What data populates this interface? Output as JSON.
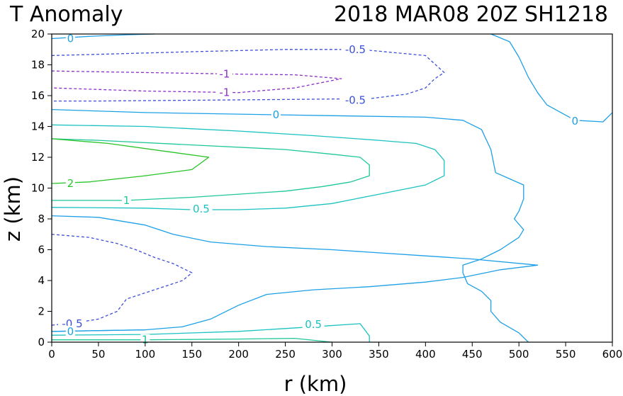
{
  "title": {
    "left": "T Anomaly",
    "right": "2018 MAR08 20Z   SH1218"
  },
  "chart_data": {
    "type": "contour",
    "xlabel": "r (km)",
    "ylabel": "z (km)",
    "xlim": [
      0,
      600
    ],
    "ylim": [
      0,
      20
    ],
    "xticks": [
      0,
      50,
      100,
      150,
      200,
      250,
      300,
      350,
      400,
      450,
      500,
      550,
      600
    ],
    "yticks": [
      0,
      2,
      4,
      6,
      8,
      10,
      12,
      14,
      16,
      18,
      20
    ],
    "grid": false,
    "levels": [
      {
        "level": -1,
        "label": "-1",
        "color": "#8b2fc9",
        "dashed": true
      },
      {
        "level": -0.5,
        "label": "-0.5",
        "color": "#3b4fd8",
        "dashed": true
      },
      {
        "level": 0,
        "label": "0",
        "color": "#1ea0e6",
        "dashed": false
      },
      {
        "level": 0.5,
        "label": "0.5",
        "color": "#1cc2c2",
        "dashed": false
      },
      {
        "level": 1,
        "label": "1",
        "color": "#1fc79a",
        "dashed": false
      },
      {
        "level": 2,
        "label": "2",
        "color": "#27c427",
        "dashed": false
      }
    ],
    "contours": [
      {
        "level": 0,
        "points": [
          [
            0,
            19.7
          ],
          [
            40,
            19.85
          ],
          [
            80,
            19.95
          ],
          [
            110,
            20
          ]
        ],
        "labels": [
          {
            "text": "0",
            "at": [
              20,
              19.7
            ]
          }
        ]
      },
      {
        "level": -0.5,
        "points": [
          [
            0,
            18.6
          ],
          [
            60,
            18.7
          ],
          [
            150,
            18.85
          ],
          [
            250,
            19.0
          ],
          [
            330,
            19.0
          ],
          [
            400,
            18.6
          ],
          [
            420,
            17.5
          ],
          [
            410,
            17.1
          ],
          [
            400,
            16.5
          ],
          [
            380,
            16.1
          ],
          [
            340,
            15.8
          ],
          [
            250,
            15.75
          ],
          [
            150,
            15.7
          ],
          [
            50,
            15.65
          ],
          [
            0,
            15.65
          ]
        ],
        "labels": [
          {
            "text": "-0.5",
            "at": [
              325,
              19.0
            ]
          },
          {
            "text": "-0.5",
            "at": [
              325,
              15.7
            ]
          }
        ]
      },
      {
        "level": -1,
        "points": [
          [
            0,
            17.6
          ],
          [
            100,
            17.5
          ],
          [
            200,
            17.4
          ],
          [
            260,
            17.35
          ],
          [
            310,
            17.1
          ],
          [
            260,
            16.5
          ],
          [
            200,
            16.2
          ],
          [
            100,
            16.3
          ],
          [
            0,
            16.5
          ]
        ],
        "labels": [
          {
            "text": "-1",
            "at": [
              185,
              17.4
            ]
          },
          {
            "text": "-1",
            "at": [
              185,
              16.2
            ]
          }
        ]
      },
      {
        "level": 0,
        "points": [
          [
            0,
            15.1
          ],
          [
            100,
            14.9
          ],
          [
            200,
            14.8
          ],
          [
            300,
            14.7
          ],
          [
            400,
            14.6
          ],
          [
            440,
            14.4
          ],
          [
            460,
            13.8
          ],
          [
            470,
            12.5
          ],
          [
            475,
            11.0
          ],
          [
            490,
            10.6
          ],
          [
            505,
            10.2
          ],
          [
            505,
            9.3
          ],
          [
            500,
            8.5
          ],
          [
            495,
            8.0
          ],
          [
            505,
            7.3
          ],
          [
            500,
            6.8
          ],
          [
            480,
            6.0
          ],
          [
            460,
            5.4
          ],
          [
            440,
            5.0
          ],
          [
            440,
            4.5
          ],
          [
            445,
            3.8
          ],
          [
            460,
            3.3
          ],
          [
            470,
            2.7
          ],
          [
            470,
            2.0
          ],
          [
            480,
            1.3
          ],
          [
            500,
            0.6
          ],
          [
            510,
            0
          ]
        ],
        "labels": [
          {
            "text": "0",
            "at": [
              240,
              14.75
            ]
          }
        ]
      },
      {
        "level": 0,
        "points": [
          [
            470,
            20
          ],
          [
            490,
            19.5
          ],
          [
            500,
            18.5
          ],
          [
            510,
            17.2
          ],
          [
            520,
            16.2
          ],
          [
            530,
            15.4
          ],
          [
            560,
            14.4
          ],
          [
            590,
            14.3
          ],
          [
            600,
            14.9
          ]
        ],
        "labels": [
          {
            "text": "0",
            "at": [
              560,
              14.35
            ]
          }
        ]
      },
      {
        "level": 0.5,
        "points": [
          [
            0,
            14.1
          ],
          [
            100,
            14.0
          ],
          [
            200,
            13.7
          ],
          [
            280,
            13.4
          ],
          [
            350,
            13.1
          ],
          [
            390,
            12.9
          ],
          [
            410,
            12.5
          ],
          [
            420,
            11.8
          ],
          [
            420,
            10.8
          ],
          [
            400,
            10.2
          ],
          [
            350,
            9.6
          ],
          [
            300,
            9.0
          ],
          [
            250,
            8.7
          ],
          [
            200,
            8.6
          ],
          [
            150,
            8.6
          ],
          [
            100,
            8.7
          ],
          [
            0,
            8.75
          ]
        ],
        "labels": [
          {
            "text": "0.5",
            "at": [
              160,
              8.65
            ]
          }
        ]
      },
      {
        "level": 1,
        "points": [
          [
            0,
            13.2
          ],
          [
            50,
            13.1
          ],
          [
            150,
            12.8
          ],
          [
            250,
            12.5
          ],
          [
            300,
            12.2
          ],
          [
            330,
            12.0
          ],
          [
            340,
            11.5
          ],
          [
            340,
            10.8
          ],
          [
            320,
            10.4
          ],
          [
            290,
            10.1
          ],
          [
            250,
            9.8
          ],
          [
            150,
            9.4
          ],
          [
            80,
            9.2
          ],
          [
            0,
            9.2
          ]
        ],
        "labels": [
          {
            "text": "1",
            "at": [
              80,
              9.2
            ]
          }
        ]
      },
      {
        "level": 2,
        "points": [
          [
            0,
            13.2
          ],
          [
            60,
            12.9
          ],
          [
            120,
            12.4
          ],
          [
            168,
            12.0
          ],
          [
            150,
            11.2
          ],
          [
            100,
            10.8
          ],
          [
            40,
            10.4
          ],
          [
            0,
            10.3
          ]
        ],
        "labels": [
          {
            "text": "2",
            "at": [
              20,
              10.3
            ]
          }
        ]
      },
      {
        "level": 0,
        "points": [
          [
            0,
            8.2
          ],
          [
            50,
            8.1
          ],
          [
            100,
            7.6
          ],
          [
            130,
            7.0
          ],
          [
            170,
            6.5
          ],
          [
            230,
            6.2
          ],
          [
            300,
            6.0
          ],
          [
            400,
            5.6
          ],
          [
            450,
            5.4
          ],
          [
            520,
            5.0
          ],
          [
            480,
            4.7
          ],
          [
            440,
            4.2
          ],
          [
            400,
            3.9
          ],
          [
            340,
            3.6
          ],
          [
            280,
            3.4
          ],
          [
            230,
            3.1
          ],
          [
            200,
            2.4
          ],
          [
            170,
            1.5
          ],
          [
            140,
            1.0
          ],
          [
            100,
            0.8
          ],
          [
            0,
            0.7
          ]
        ],
        "labels": []
      },
      {
        "level": -0.5,
        "points": [
          [
            0,
            7.0
          ],
          [
            40,
            6.8
          ],
          [
            70,
            6.4
          ],
          [
            90,
            6.0
          ],
          [
            110,
            5.5
          ],
          [
            130,
            5.1
          ],
          [
            150,
            4.5
          ],
          [
            140,
            4.0
          ],
          [
            115,
            3.5
          ],
          [
            80,
            2.8
          ],
          [
            70,
            2.0
          ],
          [
            50,
            1.5
          ],
          [
            30,
            1.3
          ],
          [
            0,
            1.1
          ]
        ],
        "labels": [
          {
            "text": "-0.5",
            "at": [
              22,
              1.2
            ]
          }
        ]
      },
      {
        "level": 0.5,
        "points": [
          [
            0,
            0.45
          ],
          [
            100,
            0.5
          ],
          [
            200,
            0.7
          ],
          [
            280,
            1.0
          ],
          [
            330,
            1.2
          ],
          [
            340,
            0.4
          ],
          [
            340,
            0
          ]
        ],
        "labels": [
          {
            "text": "0.5",
            "at": [
              280,
              1.15
            ]
          }
        ]
      },
      {
        "level": 0,
        "points": [
          [
            0,
            0.7
          ],
          [
            50,
            0.75
          ],
          [
            100,
            0.8
          ]
        ],
        "labels": [
          {
            "text": "0",
            "at": [
              20,
              0.7
            ]
          }
        ]
      },
      {
        "level": 1,
        "points": [
          [
            0,
            0.15
          ],
          [
            100,
            0.15
          ],
          [
            200,
            0.2
          ],
          [
            260,
            0.25
          ],
          [
            300,
            0
          ]
        ],
        "labels": [
          {
            "text": "1",
            "at": [
              100,
              0.15
            ]
          }
        ]
      }
    ]
  }
}
